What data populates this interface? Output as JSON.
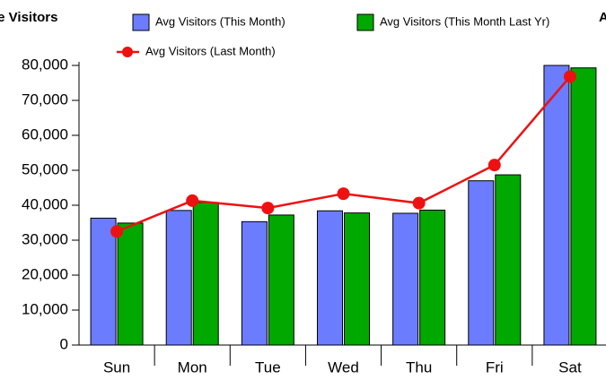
{
  "chart_data": {
    "type": "bar",
    "title": "ge Visitors",
    "annotation": "A",
    "categories": [
      "Sun",
      "Mon",
      "Tue",
      "Wed",
      "Thu",
      "Fri",
      "Sat"
    ],
    "series": [
      {
        "name": "Avg Visitors (This Month)",
        "type": "bar",
        "color": "#6b7cff",
        "values": [
          36300,
          38500,
          35300,
          38400,
          37700,
          47000,
          80000
        ]
      },
      {
        "name": "Avg Visitors (This Month Last Yr)",
        "type": "bar",
        "color": "#00a800",
        "values": [
          34900,
          40800,
          37200,
          37800,
          38600,
          48700,
          79300
        ]
      },
      {
        "name": "Avg Visitors (Last Month)",
        "type": "line",
        "color": "#ee1111",
        "values": [
          32500,
          41300,
          39200,
          43300,
          40600,
          51500,
          76800
        ]
      }
    ],
    "ylim": [
      0,
      80000
    ],
    "yticks": [
      0,
      {
        "value": 10000,
        "label": "10,000"
      },
      {
        "value": 20000,
        "label": "20,000"
      },
      {
        "value": 30000,
        "label": "30,000"
      },
      {
        "value": 40000,
        "label": "40,000"
      },
      {
        "value": 50000,
        "label": "50,000"
      },
      {
        "value": 60000,
        "label": "60,000"
      },
      {
        "value": 70000,
        "label": "70,000"
      },
      {
        "value": 80000,
        "label": "80,000"
      }
    ]
  }
}
